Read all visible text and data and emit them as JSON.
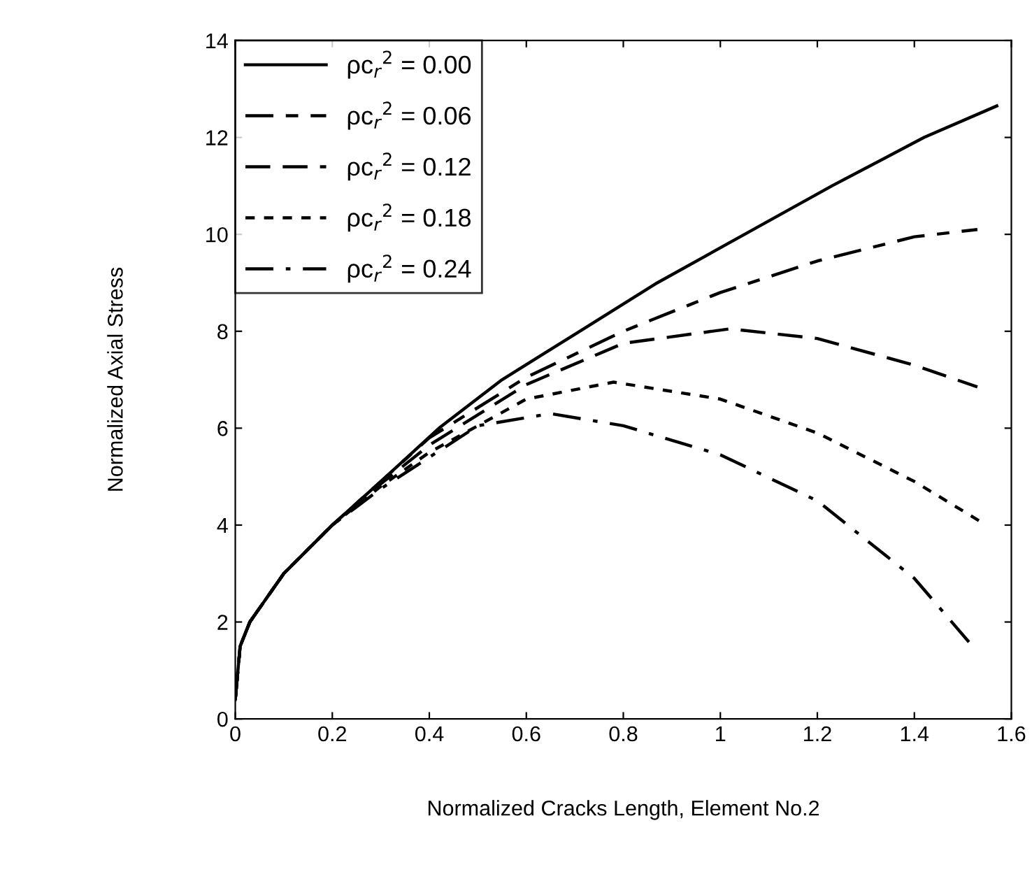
{
  "chart_data": {
    "type": "line",
    "xlabel": "Normalized Cracks Length, Element No.2",
    "ylabel": "Normalized Axial Stress",
    "xlim": [
      0,
      1.6
    ],
    "ylim": [
      0,
      14
    ],
    "xticks": [
      0,
      0.2,
      0.4,
      0.6,
      0.8,
      1,
      1.2,
      1.4,
      1.6
    ],
    "yticks": [
      0,
      2,
      4,
      6,
      8,
      10,
      12,
      14
    ],
    "grid": false,
    "legend": "top left",
    "marker": "none",
    "series": [
      {
        "name": "ρc$_{r}$$^{2}$ = 0.00",
        "color": "#000000",
        "line_style": "solid",
        "x": [
          0,
          0.01,
          0.03,
          0.1,
          0.2,
          0.3,
          0.42,
          0.55,
          0.71,
          0.87,
          1.05,
          1.23,
          1.42,
          1.57
        ],
        "values": [
          0.4,
          1.5,
          2.0,
          3.0,
          4.0,
          4.9,
          6.0,
          7.0,
          8.0,
          9.0,
          10.0,
          11.0,
          12.0,
          12.65
        ]
      },
      {
        "name": "ρc$_{r}$$^{2}$ = 0.06",
        "color": "#000000",
        "line_style": "dashdot",
        "x": [
          0,
          0.01,
          0.03,
          0.1,
          0.2,
          0.3,
          0.4,
          0.6,
          0.8,
          1.0,
          1.2,
          1.4,
          1.53
        ],
        "values": [
          0.4,
          1.5,
          2.0,
          3.0,
          4.0,
          4.9,
          5.8,
          7.05,
          8.0,
          8.8,
          9.45,
          9.95,
          10.1
        ]
      },
      {
        "name": "ρc$_{r}$$^{2}$ = 0.12",
        "color": "#000000",
        "line_style": "dashed",
        "x": [
          0,
          0.01,
          0.03,
          0.1,
          0.2,
          0.3,
          0.4,
          0.6,
          0.8,
          1.02,
          1.2,
          1.4,
          1.53
        ],
        "values": [
          0.4,
          1.5,
          2.0,
          3.0,
          4.0,
          4.85,
          5.65,
          6.9,
          7.75,
          8.05,
          7.85,
          7.3,
          6.85
        ]
      },
      {
        "name": "ρc$_{r}$$^{2}$ = 0.18",
        "color": "#000000",
        "line_style": "dotted",
        "x": [
          0,
          0.01,
          0.03,
          0.1,
          0.2,
          0.3,
          0.4,
          0.6,
          0.78,
          1.0,
          1.2,
          1.4,
          1.54
        ],
        "values": [
          0.4,
          1.5,
          2.0,
          3.0,
          4.0,
          4.8,
          5.5,
          6.6,
          6.95,
          6.6,
          5.9,
          4.9,
          4.05
        ]
      },
      {
        "name": "ρc$_{r}$$^{2}$ = 0.24",
        "color": "#000000",
        "line_style": "dashdotdot",
        "x": [
          0,
          0.01,
          0.03,
          0.1,
          0.2,
          0.3,
          0.4,
          0.5,
          0.65,
          0.8,
          1.0,
          1.2,
          1.4,
          1.52
        ],
        "values": [
          0.4,
          1.5,
          2.0,
          3.0,
          4.0,
          4.75,
          5.4,
          6.05,
          6.3,
          6.05,
          5.45,
          4.5,
          2.9,
          1.5
        ]
      }
    ]
  }
}
